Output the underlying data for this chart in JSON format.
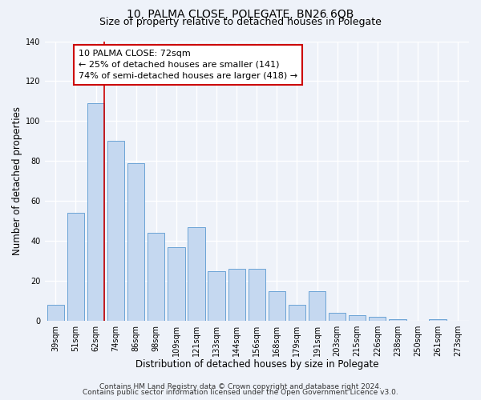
{
  "title": "10, PALMA CLOSE, POLEGATE, BN26 6QB",
  "subtitle": "Size of property relative to detached houses in Polegate",
  "xlabel": "Distribution of detached houses by size in Polegate",
  "ylabel": "Number of detached properties",
  "categories": [
    "39sqm",
    "51sqm",
    "62sqm",
    "74sqm",
    "86sqm",
    "98sqm",
    "109sqm",
    "121sqm",
    "133sqm",
    "144sqm",
    "156sqm",
    "168sqm",
    "179sqm",
    "191sqm",
    "203sqm",
    "215sqm",
    "226sqm",
    "238sqm",
    "250sqm",
    "261sqm",
    "273sqm"
  ],
  "values": [
    8,
    54,
    109,
    90,
    79,
    44,
    37,
    47,
    25,
    26,
    26,
    15,
    8,
    15,
    4,
    3,
    2,
    1,
    0,
    1,
    0
  ],
  "bar_color": "#c5d8f0",
  "bar_edge_color": "#6ba3d6",
  "vline_after_index": 2,
  "vline_color": "#cc0000",
  "ylim": [
    0,
    140
  ],
  "yticks": [
    0,
    20,
    40,
    60,
    80,
    100,
    120,
    140
  ],
  "annotation_title": "10 PALMA CLOSE: 72sqm",
  "annotation_line1": "← 25% of detached houses are smaller (141)",
  "annotation_line2": "74% of semi-detached houses are larger (418) →",
  "annotation_box_color": "#ffffff",
  "annotation_box_edgecolor": "#cc0000",
  "footer1": "Contains HM Land Registry data © Crown copyright and database right 2024.",
  "footer2": "Contains public sector information licensed under the Open Government Licence v3.0.",
  "background_color": "#eef2f9",
  "grid_color": "#ffffff",
  "title_fontsize": 10,
  "subtitle_fontsize": 9,
  "axis_label_fontsize": 8.5,
  "tick_fontsize": 7,
  "annotation_fontsize": 8,
  "footer_fontsize": 6.5
}
